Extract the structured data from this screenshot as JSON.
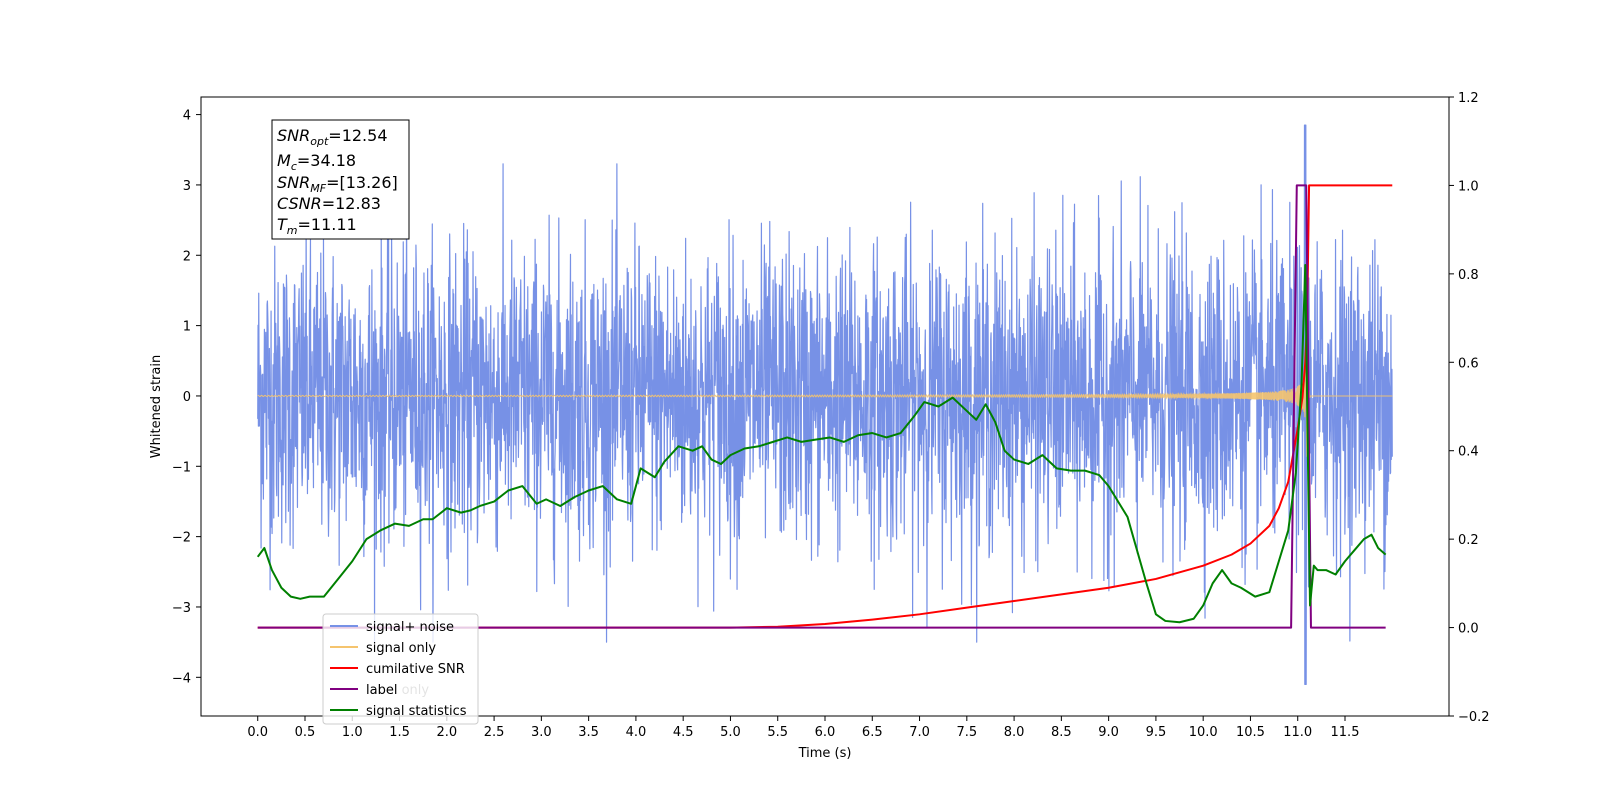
{
  "chart_data": {
    "type": "line",
    "xlabel": "Time (s)",
    "ylabel": "Whitened strain",
    "xlim": [
      -0.6,
      12.6
    ],
    "ylim": [
      -4.55,
      4.25
    ],
    "y2lim": [
      -0.2,
      1.2
    ],
    "x_ticks": [
      "0.0",
      "0.5",
      "1.0",
      "1.5",
      "2.0",
      "2.5",
      "3.0",
      "3.5",
      "4.0",
      "4.5",
      "5.0",
      "5.5",
      "6.0",
      "6.5",
      "7.0",
      "7.5",
      "8.0",
      "8.5",
      "9.0",
      "9.5",
      "10.0",
      "10.5",
      "11.0",
      "11.5"
    ],
    "y_ticks": [
      "4",
      "3",
      "2",
      "1",
      "0",
      "−1",
      "−2",
      "−3",
      "−4"
    ],
    "y2_ticks": [
      "1.2",
      "1.0",
      "0.8",
      "0.6",
      "0.4",
      "0.2",
      "0.0",
      "−0.2"
    ],
    "annotation": {
      "snr_opt": {
        "base": "SNR",
        "sub": "opt",
        "value": "=12.54"
      },
      "mc": {
        "base": "M",
        "sub": "c",
        "value": "=34.18"
      },
      "snr_mf": {
        "base": "SNR",
        "sub": "MF",
        "value": "=[13.26]"
      },
      "csnr": {
        "base": "CSNR",
        "value": "=12.83"
      },
      "tm": {
        "base": "T",
        "sub": "m",
        "value": "=11.11"
      }
    },
    "legend": {
      "location": "lower-left",
      "entries": [
        {
          "label": "signal+ noise",
          "color": "#7791e6"
        },
        {
          "label": "signal only",
          "color": "#f5c46e"
        },
        {
          "label": "cumilative SNR",
          "color": "#ff0000"
        },
        {
          "label": "label",
          "color": "#800080"
        },
        {
          "label": "signal statistics",
          "color": "#008000"
        }
      ],
      "occluded_text": "label only"
    },
    "series": [
      {
        "name": "signal+ noise",
        "axis": "left",
        "style": "noise",
        "color": "#7791e6",
        "x_range": [
          0,
          12.0
        ],
        "amplitude_range": [
          -3.5,
          3.3
        ],
        "peak": {
          "x": 11.08,
          "max": 3.85,
          "min": -4.1
        }
      },
      {
        "name": "signal only",
        "axis": "left",
        "style": "chirp",
        "color": "#f5c46e",
        "x_range": [
          0,
          12.0
        ],
        "merger_time": 11.1,
        "peak_amplitude": 1.0
      },
      {
        "name": "cumilative SNR",
        "axis": "right",
        "color": "#ff0000",
        "x": [
          0,
          5.0,
          5.5,
          6.0,
          6.5,
          7.0,
          7.5,
          8.0,
          8.5,
          9.0,
          9.5,
          10.0,
          10.3,
          10.5,
          10.7,
          10.8,
          10.9,
          11.0,
          11.05,
          11.08,
          11.1,
          11.12,
          11.5,
          12.0
        ],
        "y": [
          0,
          0,
          0.002,
          0.008,
          0.018,
          0.03,
          0.045,
          0.06,
          0.075,
          0.09,
          0.11,
          0.14,
          0.165,
          0.19,
          0.23,
          0.27,
          0.33,
          0.45,
          0.52,
          0.6,
          0.7,
          1.0,
          1.0,
          1.0
        ]
      },
      {
        "name": "label",
        "axis": "right",
        "color": "#800080",
        "x": [
          0,
          10.93,
          10.99,
          11.09,
          11.14,
          11.93
        ],
        "y": [
          0,
          0,
          1.0,
          1.0,
          0,
          0
        ]
      },
      {
        "name": "signal statistics",
        "axis": "right",
        "color": "#008000",
        "x": [
          0,
          0.07,
          0.15,
          0.25,
          0.35,
          0.45,
          0.55,
          0.7,
          0.85,
          1.0,
          1.15,
          1.3,
          1.45,
          1.6,
          1.75,
          1.85,
          2.0,
          2.15,
          2.25,
          2.35,
          2.5,
          2.65,
          2.8,
          2.95,
          3.05,
          3.2,
          3.35,
          3.5,
          3.65,
          3.8,
          3.95,
          4.05,
          4.2,
          4.3,
          4.45,
          4.6,
          4.7,
          4.8,
          4.9,
          5.0,
          5.15,
          5.3,
          5.45,
          5.6,
          5.75,
          5.9,
          6.05,
          6.2,
          6.35,
          6.5,
          6.65,
          6.8,
          6.95,
          7.05,
          7.2,
          7.35,
          7.5,
          7.6,
          7.7,
          7.8,
          7.9,
          8.0,
          8.15,
          8.3,
          8.45,
          8.6,
          8.75,
          8.9,
          9.0,
          9.2,
          9.4,
          9.5,
          9.6,
          9.75,
          9.9,
          10.0,
          10.1,
          10.2,
          10.3,
          10.4,
          10.55,
          10.7,
          10.8,
          10.9,
          10.98,
          11.04,
          11.08,
          11.1,
          11.13,
          11.17,
          11.21,
          11.3,
          11.4,
          11.5,
          11.6,
          11.7,
          11.78,
          11.85,
          11.93
        ],
        "y": [
          0.16,
          0.18,
          0.13,
          0.09,
          0.07,
          0.065,
          0.07,
          0.07,
          0.11,
          0.15,
          0.2,
          0.22,
          0.235,
          0.23,
          0.245,
          0.245,
          0.27,
          0.26,
          0.265,
          0.275,
          0.285,
          0.31,
          0.32,
          0.28,
          0.29,
          0.275,
          0.295,
          0.31,
          0.32,
          0.29,
          0.28,
          0.36,
          0.34,
          0.375,
          0.41,
          0.4,
          0.41,
          0.38,
          0.37,
          0.39,
          0.405,
          0.41,
          0.42,
          0.43,
          0.42,
          0.425,
          0.43,
          0.42,
          0.435,
          0.44,
          0.43,
          0.44,
          0.48,
          0.51,
          0.5,
          0.52,
          0.49,
          0.47,
          0.505,
          0.465,
          0.4,
          0.38,
          0.37,
          0.39,
          0.36,
          0.355,
          0.355,
          0.345,
          0.32,
          0.25,
          0.1,
          0.03,
          0.015,
          0.012,
          0.02,
          0.05,
          0.1,
          0.13,
          0.1,
          0.09,
          0.07,
          0.08,
          0.15,
          0.22,
          0.35,
          0.55,
          0.82,
          0.5,
          0.05,
          0.14,
          0.13,
          0.13,
          0.12,
          0.15,
          0.175,
          0.2,
          0.21,
          0.18,
          0.165
        ]
      }
    ]
  }
}
